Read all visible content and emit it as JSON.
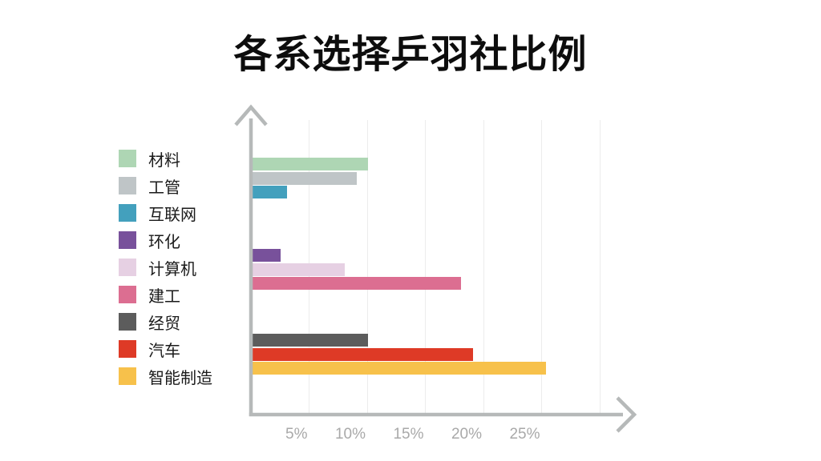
{
  "title": "各系选择乒羽社比例",
  "colors": {
    "background": "#ffffff",
    "title_text": "#0d0d0d",
    "legend_text": "#1a1a1a",
    "axis": "#b6b9b9",
    "gridline": "#ececec",
    "tick_label": "#a9a9a9"
  },
  "chart_data": {
    "type": "bar",
    "orientation": "horizontal",
    "title": "各系选择乒羽社比例",
    "xlabel": "",
    "ylabel": "",
    "xlim": [
      0,
      30
    ],
    "tick_step_percent": 5,
    "x_tick_labels": [
      "5%",
      "10%",
      "15%",
      "20%",
      "25%"
    ],
    "gridline_count": 6,
    "grid": true,
    "legend_position": "left",
    "value_unit": "%",
    "categories": [
      "材料",
      "工管",
      "互联网",
      "环化",
      "计算机",
      "建工",
      "经贸",
      "汽车",
      "智能制造"
    ],
    "series": [
      {
        "name": "材料",
        "value": 10,
        "color": "#aed6b4",
        "group": 0
      },
      {
        "name": "工管",
        "value": 9,
        "color": "#bfc5c7",
        "group": 0
      },
      {
        "name": "互联网",
        "value": 3,
        "color": "#43a0bd",
        "group": 0
      },
      {
        "name": "环化",
        "value": 2.5,
        "color": "#78519b",
        "group": 1
      },
      {
        "name": "计算机",
        "value": 8,
        "color": "#e6d0e3",
        "group": 1
      },
      {
        "name": "建工",
        "value": 18,
        "color": "#dc6e91",
        "group": 1
      },
      {
        "name": "经贸",
        "value": 10,
        "color": "#5c5c5c",
        "group": 2
      },
      {
        "name": "汽车",
        "value": 19,
        "color": "#de3a26",
        "group": 2
      },
      {
        "name": "智能制造",
        "value": 25.3,
        "color": "#f7c14b",
        "group": 2
      }
    ]
  }
}
